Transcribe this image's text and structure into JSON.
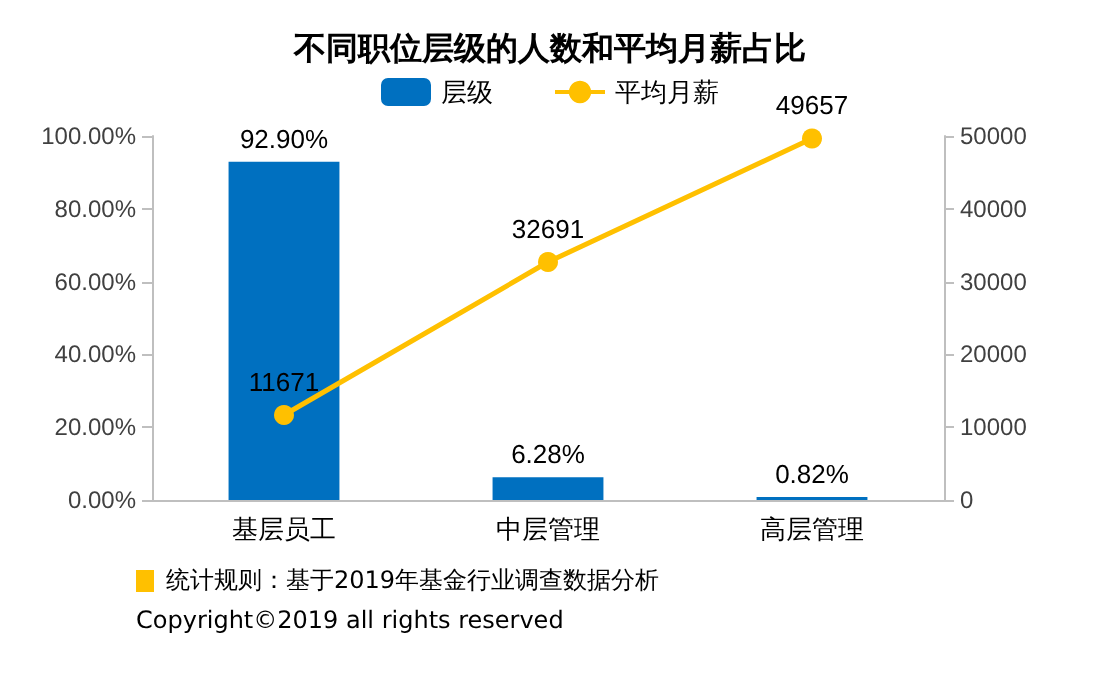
{
  "chart_data": {
    "type": "bar",
    "title": "不同职位层级的人数和平均月薪占比",
    "categories": [
      "基层员工",
      "中层管理",
      "高层管理"
    ],
    "series": [
      {
        "name": "层级",
        "color": "#0070c0",
        "values": [
          92.9,
          6.28,
          0.82
        ],
        "value_labels": [
          "92.90%",
          "6.28%",
          "0.82%"
        ]
      },
      {
        "name": "平均月薪",
        "type": "line",
        "axis": "y2",
        "color": "#ffc000",
        "values": [
          11671,
          32691,
          49657
        ],
        "value_labels": [
          "11671",
          "32691",
          "49657"
        ]
      }
    ],
    "ylim": [
      0,
      100
    ],
    "yticks": [
      {
        "value": 0,
        "label": "0.00%"
      },
      {
        "value": 20,
        "label": "20.00%"
      },
      {
        "value": 40,
        "label": "40.00%"
      },
      {
        "value": 60,
        "label": "60.00%"
      },
      {
        "value": 80,
        "label": "80.00%"
      },
      {
        "value": 100,
        "label": "100.00%"
      }
    ],
    "y2lim": [
      0,
      50000
    ],
    "y2ticks": [
      0,
      10000,
      20000,
      30000,
      40000,
      50000
    ],
    "legend": "top",
    "grid": false,
    "marker": "circle",
    "annotations": [
      "统计规则：基于2019年基金行业调查数据分析",
      "Copyright©2019 all rights reserved"
    ]
  }
}
